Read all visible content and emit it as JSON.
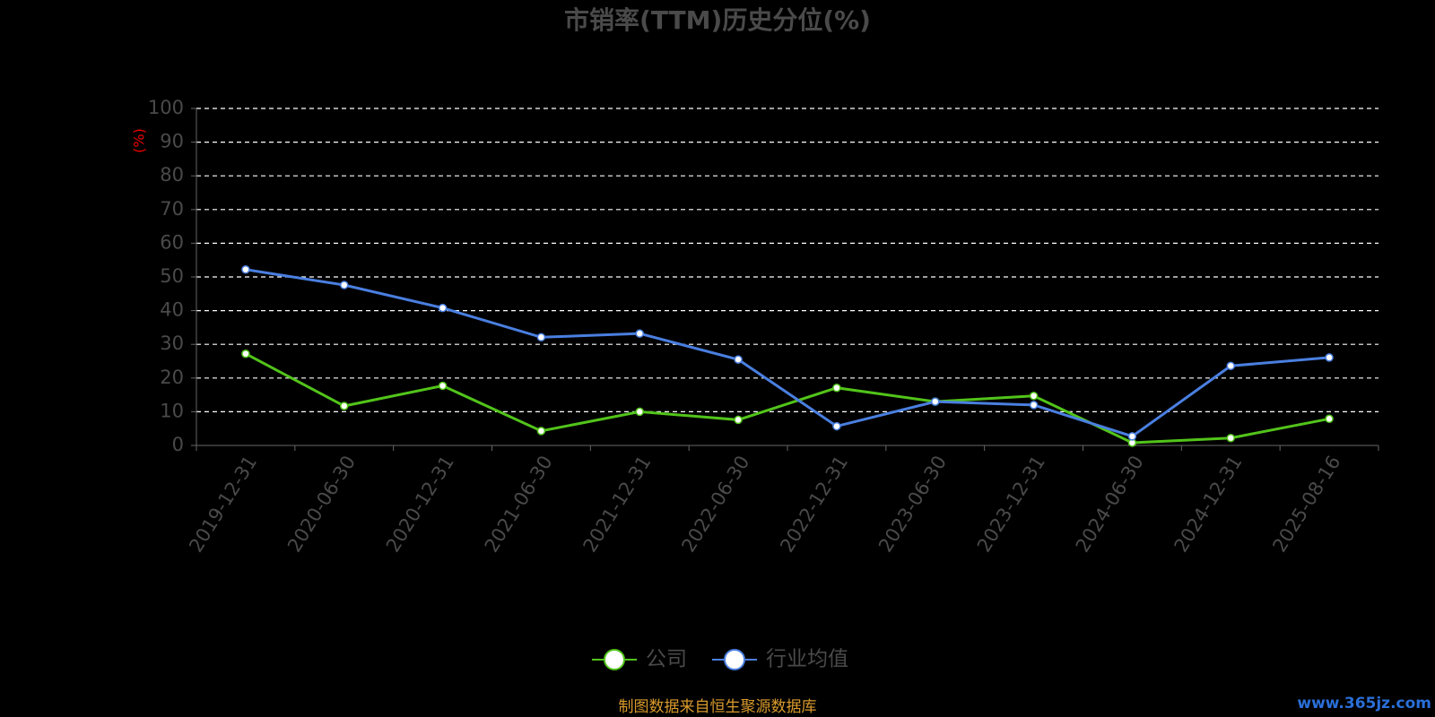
{
  "chart_data": {
    "type": "line",
    "title": "市销率(TTM)历史分位(%)",
    "y_label": "(%)",
    "categories": [
      "2019-12-31",
      "2020-06-30",
      "2020-12-31",
      "2021-06-30",
      "2021-12-31",
      "2022-06-30",
      "2022-12-31",
      "2023-06-30",
      "2023-12-31",
      "2024-06-30",
      "2024-12-31",
      "2025-08-16"
    ],
    "series": [
      {
        "name": "公司",
        "color": "#52c41a",
        "values": [
          27.2,
          11.7,
          17.7,
          4.3,
          10.0,
          7.6,
          17.1,
          13.0,
          14.7,
          0.8,
          2.2,
          7.9
        ]
      },
      {
        "name": "行业均值",
        "color": "#4a7fe0",
        "values": [
          52.2,
          47.6,
          40.8,
          32.1,
          33.2,
          25.5,
          5.7,
          13.0,
          12.0,
          2.7,
          23.6,
          26.1
        ]
      }
    ],
    "ylim": [
      0,
      100
    ],
    "yticks": [
      0,
      10,
      20,
      30,
      40,
      50,
      60,
      70,
      80,
      90,
      100
    ],
    "grid": true,
    "legend": "bottom",
    "source": "制图数据来自恒生聚源数据库",
    "watermark": "www.365jz.com"
  }
}
